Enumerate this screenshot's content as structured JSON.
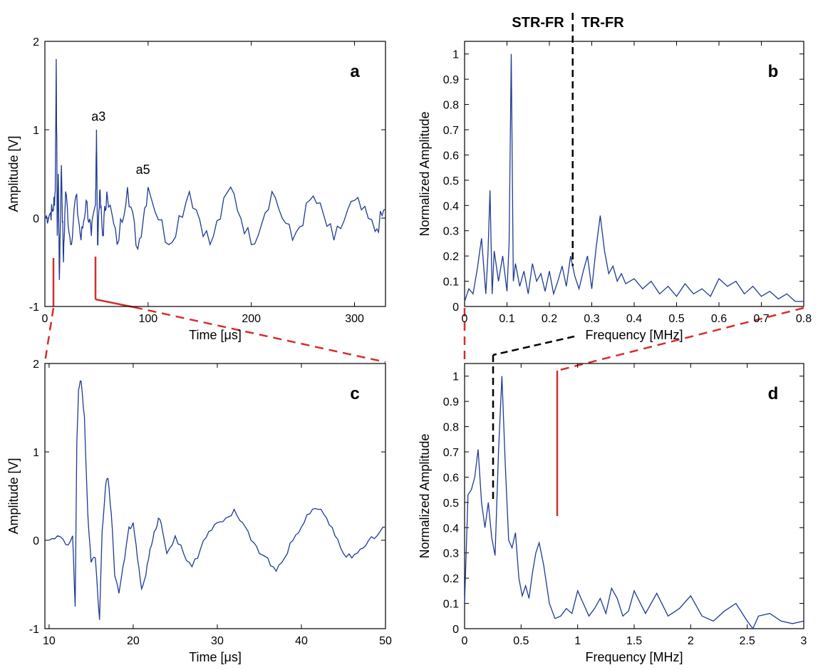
{
  "chart_data": [
    {
      "panel": "a",
      "type": "line",
      "xlabel": "Time [μs]",
      "ylabel": "Amplitude [V]",
      "xlim": [
        0,
        330
      ],
      "ylim": [
        -1,
        2
      ],
      "xticks": [
        0,
        100,
        200,
        300
      ],
      "yticks": [
        -1,
        0,
        1,
        2
      ],
      "annotations": [
        {
          "text": "a3",
          "x": 52,
          "y": 1.1
        },
        {
          "text": "a5",
          "x": 95,
          "y": 0.5
        }
      ],
      "series": [
        {
          "color": "#1f3a93",
          "x": [
            0,
            5,
            8,
            10,
            11,
            12,
            13,
            14,
            16,
            18,
            20,
            25,
            30,
            35,
            40,
            45,
            49,
            50,
            51,
            53,
            56,
            60,
            70,
            80,
            90,
            100,
            120,
            140,
            160,
            180,
            200,
            220,
            240,
            260,
            280,
            300,
            320,
            330
          ],
          "y": [
            0,
            0.05,
            0.1,
            0.3,
            1.8,
            -0.2,
            0.5,
            -0.7,
            0.6,
            -0.5,
            0.3,
            -0.3,
            0.25,
            -0.25,
            0.2,
            -0.2,
            0.15,
            1.0,
            -0.3,
            0.3,
            -0.2,
            0.3,
            -0.3,
            0.35,
            -0.35,
            0.35,
            -0.3,
            0.3,
            -0.3,
            0.35,
            -0.3,
            0.3,
            -0.25,
            0.25,
            -0.25,
            0.2,
            -0.15,
            0.1
          ]
        }
      ]
    },
    {
      "panel": "b",
      "type": "line",
      "xlabel": "Frequency [MHz]",
      "ylabel": "Normalized Amplitude",
      "xlim": [
        0,
        0.8
      ],
      "ylim": [
        0,
        1.05
      ],
      "xticks": [
        0,
        0.1,
        0.2,
        0.3,
        0.4,
        0.5,
        0.6,
        0.7,
        0.8
      ],
      "yticks": [
        0,
        0.1,
        0.2,
        0.3,
        0.4,
        0.5,
        0.6,
        0.7,
        0.8,
        0.9,
        1
      ],
      "regions": [
        {
          "label": "STR-FR"
        },
        {
          "label": "TR-FR"
        }
      ],
      "divider_x": 0.255,
      "series": [
        {
          "color": "#1f3a93",
          "x": [
            0,
            0.01,
            0.02,
            0.03,
            0.04,
            0.05,
            0.055,
            0.06,
            0.065,
            0.07,
            0.08,
            0.09,
            0.1,
            0.105,
            0.11,
            0.115,
            0.12,
            0.13,
            0.14,
            0.15,
            0.16,
            0.17,
            0.18,
            0.19,
            0.2,
            0.21,
            0.22,
            0.23,
            0.24,
            0.25,
            0.26,
            0.27,
            0.28,
            0.29,
            0.3,
            0.31,
            0.32,
            0.33,
            0.34,
            0.35,
            0.36,
            0.37,
            0.38,
            0.4,
            0.42,
            0.44,
            0.46,
            0.48,
            0.5,
            0.52,
            0.54,
            0.56,
            0.58,
            0.6,
            0.62,
            0.64,
            0.66,
            0.68,
            0.7,
            0.72,
            0.74,
            0.76,
            0.78,
            0.8
          ],
          "y": [
            0.02,
            0.07,
            0.05,
            0.15,
            0.27,
            0.05,
            0.2,
            0.46,
            0.05,
            0.22,
            0.1,
            0.2,
            0.06,
            0.25,
            1.0,
            0.1,
            0.17,
            0.08,
            0.14,
            0.05,
            0.17,
            0.1,
            0.13,
            0.06,
            0.14,
            0.05,
            0.1,
            0.16,
            0.08,
            0.2,
            0.12,
            0.07,
            0.14,
            0.2,
            0.07,
            0.23,
            0.36,
            0.22,
            0.13,
            0.16,
            0.1,
            0.13,
            0.09,
            0.11,
            0.07,
            0.1,
            0.05,
            0.08,
            0.04,
            0.09,
            0.05,
            0.07,
            0.04,
            0.11,
            0.08,
            0.1,
            0.05,
            0.08,
            0.04,
            0.06,
            0.03,
            0.05,
            0.02,
            0.02
          ]
        }
      ]
    },
    {
      "panel": "c",
      "type": "line",
      "xlabel": "Time [μs]",
      "ylabel": "Amplitude [V]",
      "xlim": [
        9.5,
        50
      ],
      "ylim": [
        -1,
        2
      ],
      "xticks": [
        10,
        20,
        30,
        40,
        50
      ],
      "yticks": [
        -1,
        0,
        1,
        2
      ],
      "series": [
        {
          "color": "#1f3a93",
          "x": [
            10,
            11,
            12,
            12.8,
            13.1,
            13.3,
            13.5,
            13.8,
            14.2,
            14.6,
            15,
            15.5,
            16,
            16.3,
            16.7,
            17,
            17.4,
            17.8,
            18.3,
            19,
            19.5,
            20,
            20.5,
            21,
            21.5,
            22,
            22.5,
            23,
            23.5,
            24,
            25,
            26,
            27,
            28,
            29,
            30,
            31,
            32,
            33,
            34,
            35,
            36,
            37,
            38,
            39,
            40,
            41,
            42,
            43,
            44,
            45,
            46,
            47,
            48,
            49,
            50
          ],
          "y": [
            0,
            0.05,
            -0.05,
            0.05,
            -0.75,
            1.1,
            1.7,
            1.8,
            1.4,
            0.3,
            -0.25,
            -0.2,
            -0.9,
            0.1,
            0.6,
            0.7,
            0.3,
            -0.4,
            -0.6,
            -0.2,
            0.15,
            0.2,
            -0.2,
            -0.55,
            -0.4,
            -0.1,
            0.1,
            0.25,
            0.1,
            -0.15,
            0.05,
            -0.15,
            -0.3,
            -0.1,
            0.1,
            0.2,
            0.25,
            0.35,
            0.2,
            0.0,
            -0.15,
            -0.2,
            -0.35,
            -0.2,
            0.0,
            0.15,
            0.3,
            0.35,
            0.25,
            0.05,
            -0.15,
            -0.2,
            -0.1,
            0.0,
            0.05,
            0.15
          ]
        }
      ]
    },
    {
      "panel": "d",
      "type": "line",
      "xlabel": "Frequency [MHz]",
      "ylabel": "Normalized Amplitude",
      "xlim": [
        0,
        3
      ],
      "ylim": [
        0,
        1.05
      ],
      "xticks": [
        0,
        0.5,
        1,
        1.5,
        2,
        2.5,
        3
      ],
      "yticks": [
        0,
        0.1,
        0.2,
        0.3,
        0.4,
        0.5,
        0.6,
        0.7,
        0.8,
        0.9,
        1
      ],
      "series": [
        {
          "color": "#1f3a93",
          "x": [
            0,
            0.03,
            0.06,
            0.09,
            0.12,
            0.15,
            0.18,
            0.21,
            0.24,
            0.27,
            0.3,
            0.33,
            0.36,
            0.39,
            0.42,
            0.45,
            0.48,
            0.51,
            0.54,
            0.57,
            0.6,
            0.63,
            0.66,
            0.7,
            0.75,
            0.8,
            0.85,
            0.9,
            0.95,
            1.0,
            1.05,
            1.1,
            1.15,
            1.2,
            1.25,
            1.3,
            1.35,
            1.4,
            1.45,
            1.5,
            1.6,
            1.7,
            1.8,
            1.9,
            2.0,
            2.1,
            2.2,
            2.3,
            2.4,
            2.5,
            2.55,
            2.6,
            2.7,
            2.8,
            2.9,
            3.0
          ],
          "y": [
            0.1,
            0.53,
            0.55,
            0.6,
            0.71,
            0.5,
            0.4,
            0.5,
            0.36,
            0.29,
            0.7,
            1.0,
            0.65,
            0.35,
            0.32,
            0.38,
            0.2,
            0.13,
            0.17,
            0.12,
            0.22,
            0.3,
            0.34,
            0.25,
            0.1,
            0.04,
            0.05,
            0.08,
            0.06,
            0.15,
            0.1,
            0.05,
            0.08,
            0.12,
            0.06,
            0.16,
            0.12,
            0.05,
            0.07,
            0.15,
            0.06,
            0.14,
            0.05,
            0.08,
            0.13,
            0.05,
            0.03,
            0.07,
            0.1,
            0.03,
            0.0,
            0.05,
            0.06,
            0.03,
            0.02,
            0.03
          ]
        }
      ]
    }
  ],
  "panel_letters": {
    "a": "a",
    "b": "b",
    "c": "c",
    "d": "d"
  }
}
